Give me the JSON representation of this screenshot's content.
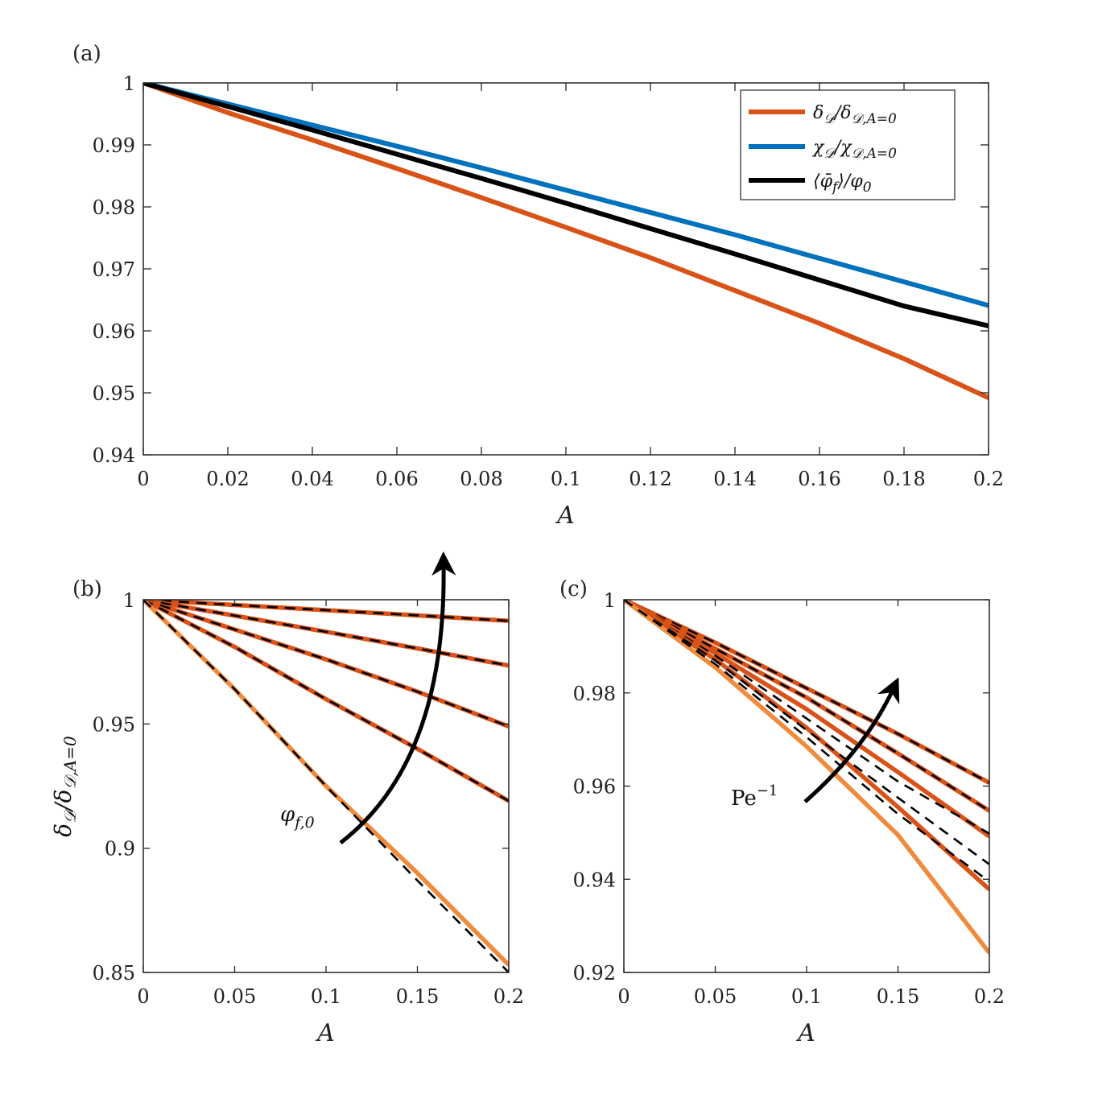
{
  "colors": {
    "orange_dark": "#D95319",
    "orange_light": "#F08A3C",
    "blue": "#0072BD",
    "black": "#000000",
    "axis": "#262626"
  },
  "chart_data": [
    {
      "panel": "(a)",
      "type": "line",
      "xlabel": "A",
      "ylabel": "",
      "xlim": [
        0,
        0.2
      ],
      "ylim": [
        0.94,
        1
      ],
      "xticks": [
        0,
        0.02,
        0.04,
        0.06,
        0.08,
        0.1,
        0.12,
        0.14,
        0.16,
        0.18,
        0.2
      ],
      "xticklabels": [
        "0",
        "0.02",
        "0.04",
        "0.06",
        "0.08",
        "0.1",
        "0.12",
        "0.14",
        "0.16",
        "0.18",
        "0.2"
      ],
      "yticks": [
        0.94,
        0.95,
        0.96,
        0.97,
        0.98,
        0.99,
        1
      ],
      "yticklabels": [
        "0.94",
        "0.95",
        "0.96",
        "0.97",
        "0.98",
        "0.99",
        "1"
      ],
      "legend": "top-right",
      "grid": false,
      "x": [
        0,
        0.02,
        0.04,
        0.06,
        0.08,
        0.1,
        0.12,
        0.14,
        0.16,
        0.18,
        0.2
      ],
      "series": [
        {
          "name": "δ_D / δ_{D,A=0}",
          "color": "#D95319",
          "values": [
            1,
            0.9952,
            0.9908,
            0.9862,
            0.9815,
            0.9767,
            0.9718,
            0.9665,
            0.9612,
            0.9555,
            0.9492
          ]
        },
        {
          "name": "χ_D / χ_{D,A=0}",
          "color": "#0072BD",
          "values": [
            1,
            0.9966,
            0.9932,
            0.9898,
            0.9863,
            0.9827,
            0.9791,
            0.9755,
            0.9717,
            0.9679,
            0.9641
          ]
        },
        {
          "name": "⟨φ̄_f⟩ / φ_0",
          "color": "#000000",
          "values": [
            1,
            0.9962,
            0.9924,
            0.9885,
            0.9846,
            0.9806,
            0.9765,
            0.9724,
            0.9682,
            0.964,
            0.9608
          ]
        }
      ]
    },
    {
      "panel": "(b)",
      "type": "line",
      "xlabel": "A",
      "ylabel": "δ_D / δ_{D,A=0}",
      "xlim": [
        0,
        0.2
      ],
      "ylim": [
        0.85,
        1
      ],
      "xticks": [
        0,
        0.05,
        0.1,
        0.15,
        0.2
      ],
      "xticklabels": [
        "0",
        "0.05",
        "0.1",
        "0.15",
        "0.2"
      ],
      "yticks": [
        0.85,
        0.9,
        0.95,
        1
      ],
      "yticklabels": [
        "0.85",
        "0.9",
        "0.95",
        "1"
      ],
      "x": [
        0,
        0.05,
        0.1,
        0.15,
        0.2
      ],
      "annotation": "φ_{f,0}",
      "series": [
        {
          "color": "#D95319",
          "values": [
            1,
            0.9979,
            0.9958,
            0.9937,
            0.9915
          ],
          "dashed_values": [
            1,
            0.9979,
            0.9958,
            0.9937,
            0.9915
          ]
        },
        {
          "color": "#D95319",
          "values": [
            1,
            0.9936,
            0.9871,
            0.9804,
            0.9735
          ],
          "dashed_values": [
            1,
            0.9936,
            0.9871,
            0.9804,
            0.9735
          ]
        },
        {
          "color": "#D95319",
          "values": [
            1,
            0.988,
            0.976,
            0.963,
            0.949
          ],
          "dashed_values": [
            1,
            0.988,
            0.976,
            0.963,
            0.949
          ]
        },
        {
          "color": "#D95319",
          "values": [
            1,
            0.981,
            0.96,
            0.94,
            0.919
          ],
          "dashed_values": [
            1,
            0.981,
            0.96,
            0.94,
            0.919
          ]
        },
        {
          "color": "#F08A3C",
          "values": [
            1,
            0.964,
            0.925,
            0.89,
            0.853
          ],
          "dashed_values": [
            1,
            0.964,
            0.925,
            0.887,
            0.85
          ]
        }
      ]
    },
    {
      "panel": "(c)",
      "type": "line",
      "xlabel": "A",
      "ylabel": "",
      "xlim": [
        0,
        0.2
      ],
      "ylim": [
        0.92,
        1
      ],
      "xticks": [
        0,
        0.05,
        0.1,
        0.15,
        0.2
      ],
      "xticklabels": [
        "0",
        "0.05",
        "0.1",
        "0.15",
        "0.2"
      ],
      "yticks": [
        0.92,
        0.94,
        0.96,
        0.98,
        1
      ],
      "yticklabels": [
        "0.92",
        "0.94",
        "0.96",
        "0.98",
        "1"
      ],
      "x": [
        0,
        0.05,
        0.1,
        0.15,
        0.2
      ],
      "annotation": "Pe^{-1}",
      "series": [
        {
          "color": "#D95319",
          "values": [
            1,
            0.9908,
            0.981,
            0.9712,
            0.9607
          ],
          "dashed_values": [
            1,
            0.9908,
            0.981,
            0.9712,
            0.9607
          ]
        },
        {
          "color": "#D95319",
          "values": [
            1,
            0.9895,
            0.979,
            0.967,
            0.9547
          ],
          "dashed_values": [
            1,
            0.9895,
            0.979,
            0.967,
            0.9547
          ]
        },
        {
          "color": "#D95319",
          "values": [
            1,
            0.9885,
            0.9765,
            0.963,
            0.9492
          ],
          "dashed_values": [
            1,
            0.988,
            0.9745,
            0.961,
            0.9498
          ]
        },
        {
          "color": "#D95319",
          "values": [
            1,
            0.9872,
            0.9725,
            0.9555,
            0.9378
          ],
          "dashed_values": [
            1,
            0.987,
            0.972,
            0.9575,
            0.9432
          ]
        },
        {
          "color": "#F08A3C",
          "values": [
            1,
            0.9855,
            0.9685,
            0.9495,
            0.9242
          ],
          "dashed_values": [
            1,
            0.9862,
            0.9705,
            0.954,
            0.9395
          ]
        }
      ]
    }
  ]
}
